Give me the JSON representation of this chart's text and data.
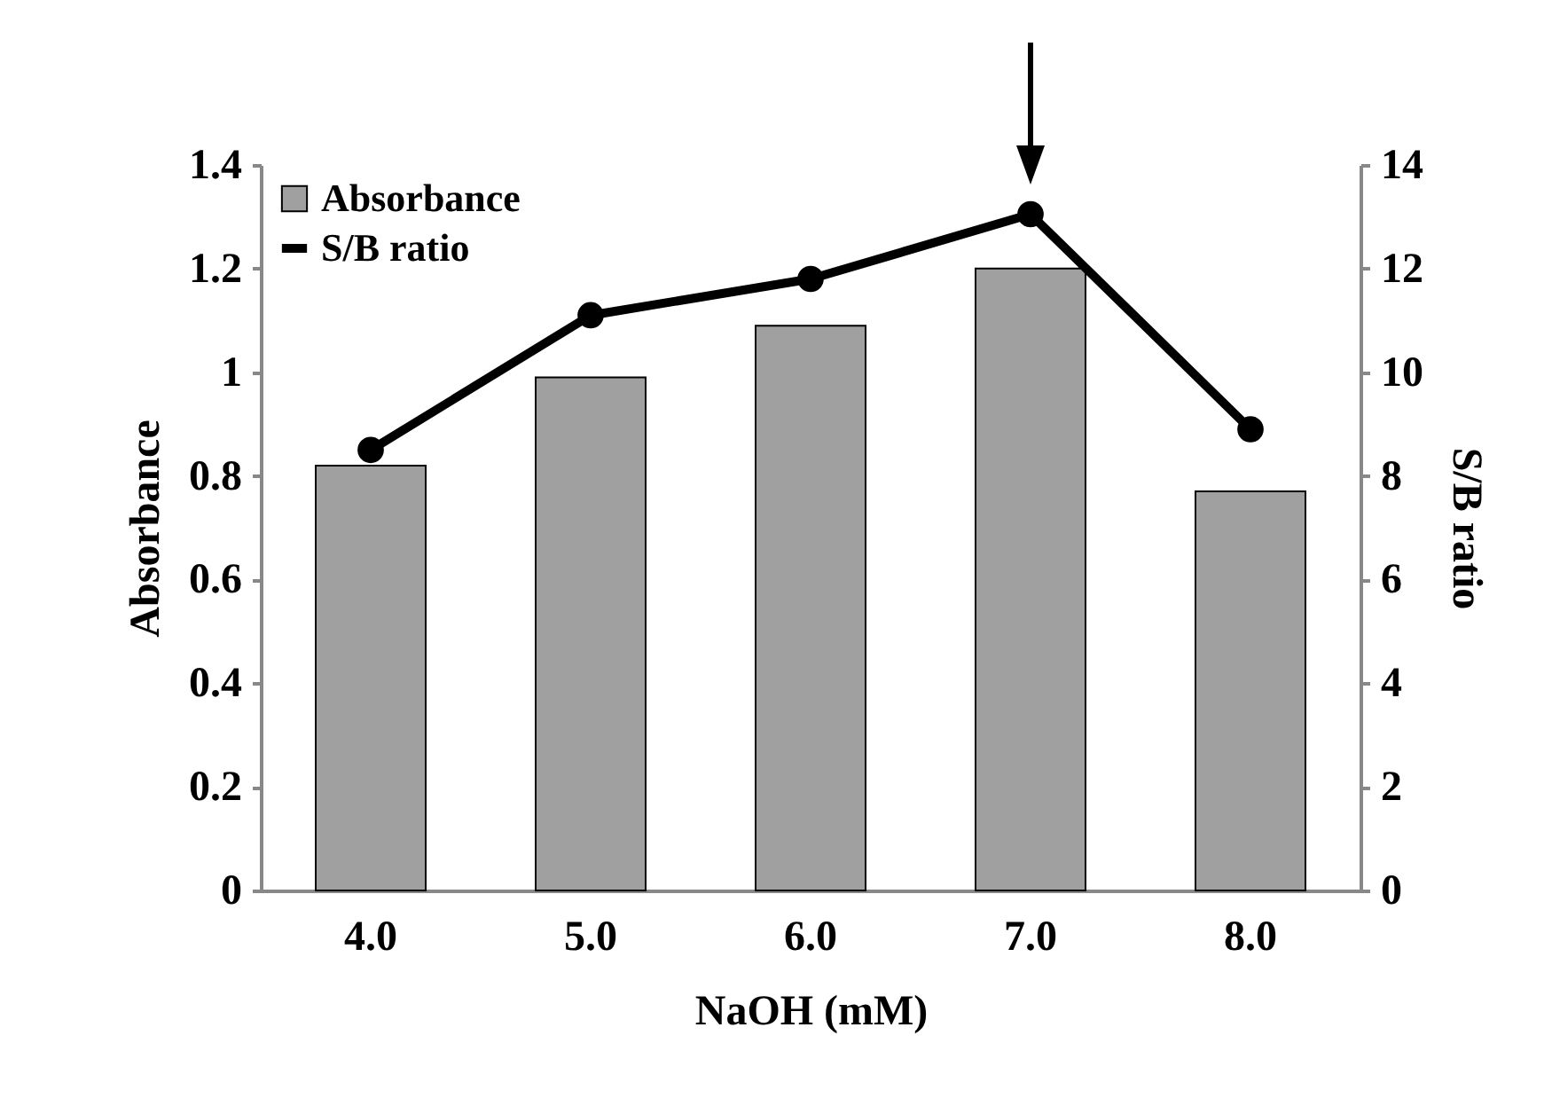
{
  "chart_data": {
    "type": "bar",
    "xlabel": "NaOH (mM)",
    "ylabel": "Absorbance",
    "y2label": "S/B ratio",
    "categories": [
      "4.0",
      "5.0",
      "6.0",
      "7.0",
      "8.0"
    ],
    "series": [
      {
        "name": "Absorbance",
        "color": "#a0a0a0",
        "values": [
          0.82,
          0.99,
          1.09,
          1.2,
          0.77
        ]
      },
      {
        "name": "S/B ratio",
        "type": "line",
        "axis": "y2",
        "color": "#000000",
        "values": [
          8.5,
          11.1,
          11.8,
          13.05,
          8.9
        ]
      }
    ],
    "ylim": [
      0,
      1.4
    ],
    "yticks": [
      0,
      0.2,
      0.4,
      0.6,
      0.8,
      1,
      1.2,
      1.4
    ],
    "y2lim": [
      0,
      14
    ],
    "y2ticks": [
      0,
      2,
      4,
      6,
      8,
      10,
      12,
      14
    ],
    "legend": "top left",
    "marker": "circle",
    "line_style": "solid",
    "grid": false
  }
}
